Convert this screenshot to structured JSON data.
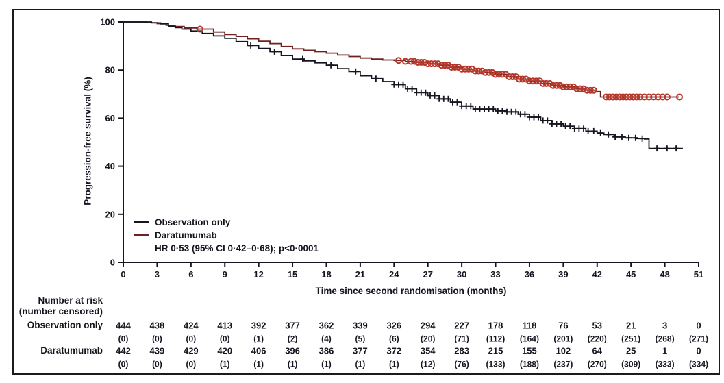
{
  "figure": {
    "background": "#ffffff",
    "frame_color": "#1b1b1b",
    "text_color": "#15151f"
  },
  "chart_data": {
    "type": "line",
    "subtype": "kaplan-meier-step",
    "title": "",
    "xlabel": "Time since second randomisation (months)",
    "ylabel": "Progression-free survival (%)",
    "xlim": [
      0,
      51
    ],
    "ylim": [
      0,
      100
    ],
    "xticks": [
      0,
      3,
      6,
      9,
      12,
      15,
      18,
      21,
      24,
      27,
      30,
      33,
      36,
      39,
      42,
      45,
      48,
      51
    ],
    "yticks": [
      0,
      20,
      40,
      60,
      80,
      100
    ],
    "grid": false,
    "legend": {
      "position": "lower-left",
      "entries": [
        {
          "label": "Observation only",
          "color": "#15151f"
        },
        {
          "label": "Daratumumab",
          "color": "#702020"
        }
      ],
      "annotation": "HR 0·53 (95% CI 0·42–0·68); p<0·0001"
    },
    "series": [
      {
        "name": "Daratumumab",
        "line_color": "#702020",
        "marker": "open-circle",
        "marker_color": "#b5372a",
        "points": [
          [
            0,
            100
          ],
          [
            2,
            99.7
          ],
          [
            3,
            99.3
          ],
          [
            3.8,
            98.6
          ],
          [
            4.6,
            98.1
          ],
          [
            5.4,
            97.5
          ],
          [
            6.5,
            97
          ],
          [
            8,
            95.8
          ],
          [
            9,
            94.8
          ],
          [
            10,
            94
          ],
          [
            11,
            93
          ],
          [
            12,
            92
          ],
          [
            13,
            91
          ],
          [
            14,
            89.8
          ],
          [
            15,
            88.8
          ],
          [
            16,
            88.2
          ],
          [
            17,
            87.6
          ],
          [
            18,
            87
          ],
          [
            19,
            86.2
          ],
          [
            20,
            85.6
          ],
          [
            21,
            85
          ],
          [
            22,
            84.6
          ],
          [
            23,
            84.2
          ],
          [
            24,
            84
          ],
          [
            25,
            83.6
          ],
          [
            26,
            83.2
          ],
          [
            27,
            82.6
          ],
          [
            28,
            82
          ],
          [
            29,
            81.2
          ],
          [
            30,
            80.4
          ],
          [
            31,
            79.6
          ],
          [
            32,
            79
          ],
          [
            33,
            78.2
          ],
          [
            34,
            77.2
          ],
          [
            35,
            76.2
          ],
          [
            36,
            75.4
          ],
          [
            37,
            74.4
          ],
          [
            38,
            73.6
          ],
          [
            39,
            73
          ],
          [
            40,
            72.2
          ],
          [
            41,
            71.6
          ],
          [
            41.8,
            71
          ],
          [
            42.3,
            68.8
          ],
          [
            49.3,
            68.8
          ]
        ],
        "censor_months": [
          6.8,
          24.4,
          25.0,
          25.5,
          25.8,
          26.1,
          26.4,
          26.7,
          27.0,
          27.3,
          27.6,
          27.9,
          28.2,
          28.5,
          28.8,
          29.1,
          29.4,
          29.7,
          30.0,
          30.3,
          30.6,
          30.9,
          31.2,
          31.5,
          31.8,
          32.1,
          32.4,
          32.7,
          33.0,
          33.3,
          33.6,
          33.9,
          34.2,
          34.5,
          34.8,
          35.1,
          35.4,
          35.7,
          36.0,
          36.3,
          36.6,
          36.9,
          37.2,
          37.5,
          37.8,
          38.1,
          38.4,
          38.7,
          39.0,
          39.3,
          39.6,
          39.9,
          40.2,
          40.5,
          40.8,
          41.1,
          41.4,
          41.7,
          42.8,
          43.1,
          43.4,
          43.7,
          44.0,
          44.3,
          44.6,
          44.9,
          45.2,
          45.5,
          45.8,
          46.2,
          46.6,
          47.0,
          47.4,
          47.8,
          48.2,
          49.3
        ]
      },
      {
        "name": "Observation only",
        "line_color": "#15151f",
        "marker": "plus",
        "marker_color": "#15151f",
        "points": [
          [
            0,
            100
          ],
          [
            2.5,
            99.6
          ],
          [
            3.3,
            99.2
          ],
          [
            4,
            98.2
          ],
          [
            4.6,
            97.6
          ],
          [
            5.2,
            97
          ],
          [
            6,
            96.2
          ],
          [
            7,
            95.2
          ],
          [
            8,
            94.2
          ],
          [
            9,
            93.2
          ],
          [
            10,
            91.8
          ],
          [
            11,
            90.2
          ],
          [
            12,
            89
          ],
          [
            13,
            87.6
          ],
          [
            14,
            86
          ],
          [
            15,
            84.6
          ],
          [
            16,
            83.8
          ],
          [
            17,
            83
          ],
          [
            18,
            82
          ],
          [
            19,
            80.6
          ],
          [
            20,
            79.4
          ],
          [
            21,
            77.6
          ],
          [
            22,
            76.4
          ],
          [
            23,
            75.2
          ],
          [
            24,
            74
          ],
          [
            25,
            72.2
          ],
          [
            26,
            70.6
          ],
          [
            27,
            69.4
          ],
          [
            28,
            68
          ],
          [
            29,
            66.6
          ],
          [
            30,
            65
          ],
          [
            31,
            63.8
          ],
          [
            33,
            63
          ],
          [
            34,
            62.6
          ],
          [
            35,
            61.6
          ],
          [
            36,
            60.4
          ],
          [
            37,
            59
          ],
          [
            38,
            57.6
          ],
          [
            39,
            56.6
          ],
          [
            40,
            55.6
          ],
          [
            41,
            54.6
          ],
          [
            42,
            53.8
          ],
          [
            42.6,
            53.2
          ],
          [
            43.5,
            52.2
          ],
          [
            44.5,
            51.8
          ],
          [
            45.5,
            51.5
          ],
          [
            46.2,
            51.3
          ],
          [
            46.6,
            47.4
          ],
          [
            49.6,
            47.4
          ]
        ],
        "censor_months": [
          11.3,
          13.4,
          15.9,
          18.4,
          20.6,
          22.4,
          24.0,
          24.4,
          24.8,
          25.2,
          25.6,
          26.0,
          26.4,
          26.8,
          27.2,
          27.6,
          28.0,
          28.4,
          28.8,
          29.2,
          29.6,
          30.0,
          30.4,
          30.8,
          31.2,
          31.6,
          32.0,
          32.4,
          32.8,
          33.2,
          33.6,
          34.0,
          34.4,
          34.8,
          35.2,
          35.6,
          36.0,
          36.4,
          36.8,
          37.2,
          37.6,
          38.0,
          38.4,
          38.8,
          39.2,
          39.6,
          40.0,
          40.4,
          40.8,
          41.2,
          41.7,
          42.3,
          43.0,
          43.6,
          44.2,
          44.8,
          45.4,
          46.0,
          47.3,
          48.2,
          49.0
        ]
      }
    ]
  },
  "risk_table": {
    "header_line1": "Number at risk",
    "header_line2": "(number censored)",
    "months": [
      0,
      3,
      6,
      9,
      12,
      15,
      18,
      21,
      24,
      27,
      30,
      33,
      36,
      39,
      42,
      45,
      48,
      51
    ],
    "rows": [
      {
        "label": "Observation only",
        "at_risk": [
          "444",
          "438",
          "424",
          "413",
          "392",
          "377",
          "362",
          "339",
          "326",
          "294",
          "227",
          "178",
          "118",
          "76",
          "53",
          "21",
          "3",
          "0"
        ],
        "censored": [
          "(0)",
          "(0)",
          "(0)",
          "(0)",
          "(1)",
          "(2)",
          "(4)",
          "(5)",
          "(6)",
          "(20)",
          "(71)",
          "(112)",
          "(164)",
          "(201)",
          "(220)",
          "(251)",
          "(268)",
          "(271)"
        ]
      },
      {
        "label": "Daratumumab",
        "at_risk": [
          "442",
          "439",
          "429",
          "420",
          "406",
          "396",
          "386",
          "377",
          "372",
          "354",
          "283",
          "215",
          "155",
          "102",
          "64",
          "25",
          "1",
          "0"
        ],
        "censored": [
          "(0)",
          "(0)",
          "(0)",
          "(1)",
          "(1)",
          "(1)",
          "(1)",
          "(1)",
          "(1)",
          "(12)",
          "(76)",
          "(133)",
          "(188)",
          "(237)",
          "(270)",
          "(309)",
          "(333)",
          "(334)"
        ]
      }
    ]
  }
}
